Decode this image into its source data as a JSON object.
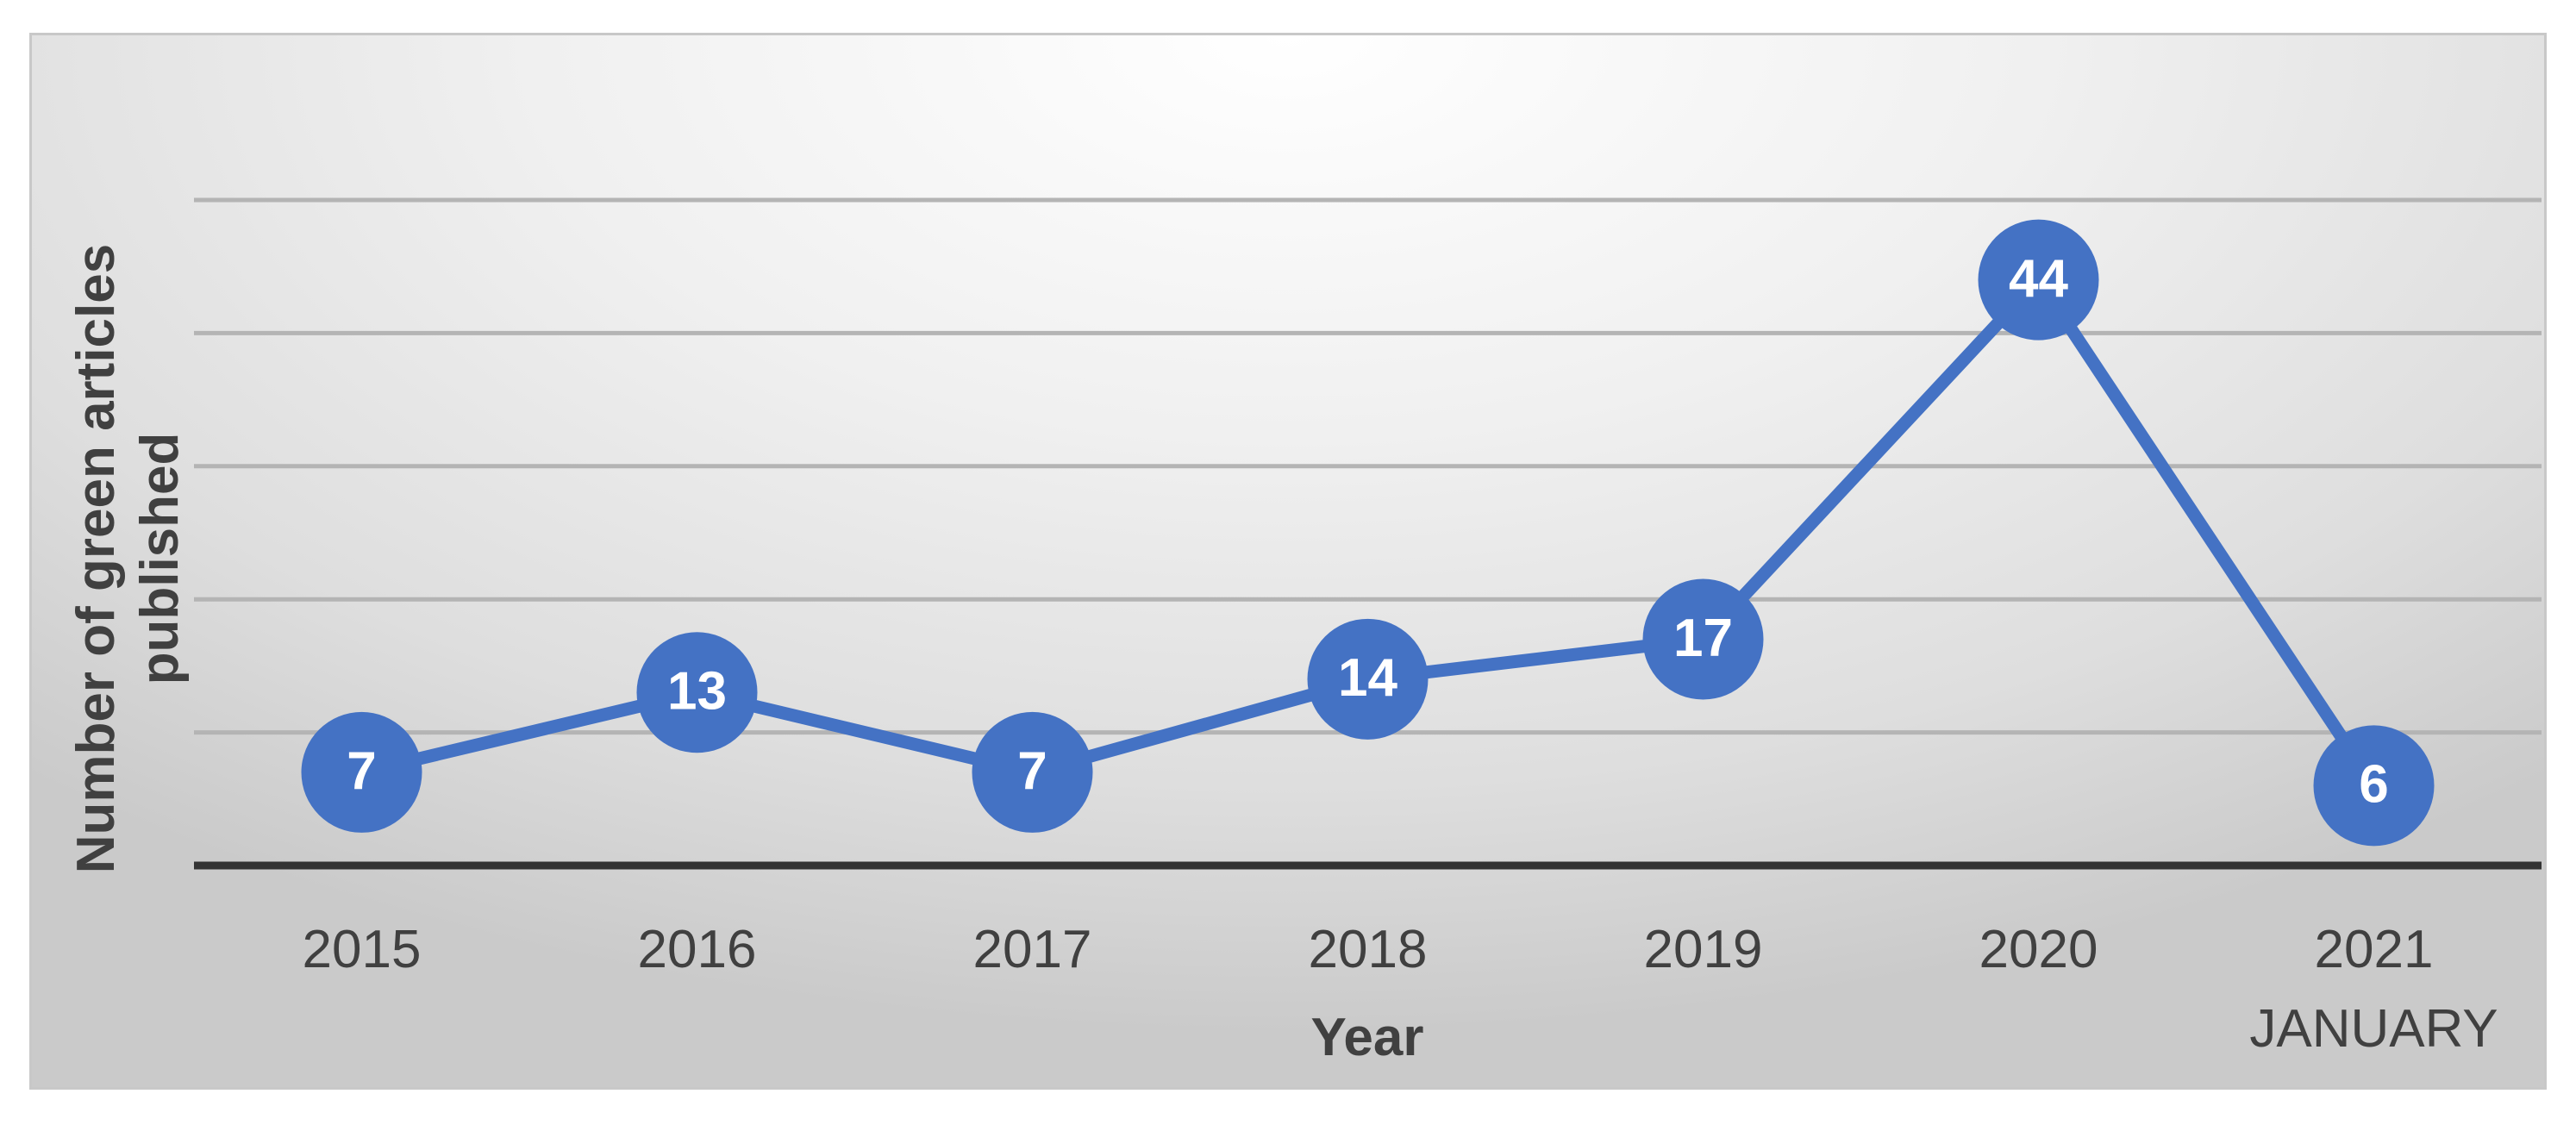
{
  "chart_data": {
    "type": "line",
    "x_label": "Year",
    "y_label": "Number of green articles published",
    "categories": [
      "2015",
      "2016",
      "2017",
      "2018",
      "2019",
      "2020",
      "2021\nJANUARY"
    ],
    "values": [
      7,
      13,
      7,
      14,
      17,
      44,
      6
    ],
    "color": "#4472c4",
    "ylim": [
      0,
      50
    ],
    "yticks": [
      0,
      10,
      20,
      30,
      40,
      50
    ],
    "grid": true
  }
}
